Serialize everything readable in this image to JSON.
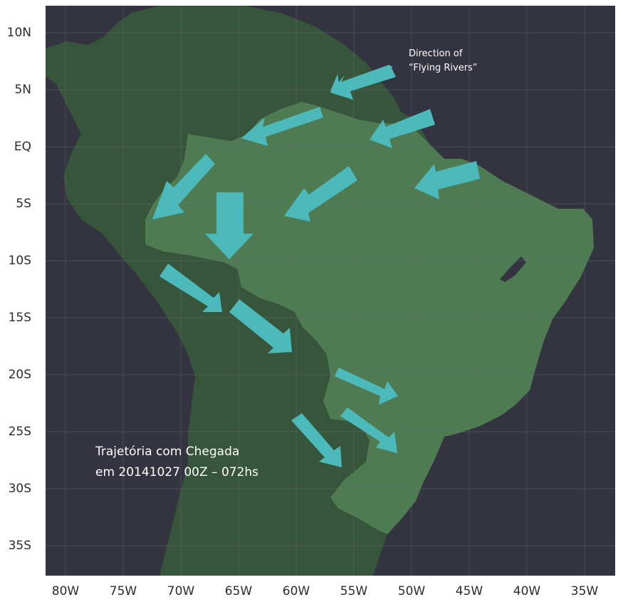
{
  "map": {
    "annotation_direction": [
      "Direction of",
      "“Flying Rivers”"
    ],
    "annotation_trajectory": [
      "Trajetória com Chegada",
      "em 20141027 00Z – 072hs"
    ],
    "lat_labels": [
      "10N",
      "5N",
      "EQ",
      "5S",
      "10S",
      "15S",
      "20S",
      "25S",
      "30S",
      "35S"
    ],
    "lon_labels": [
      "80W",
      "75W",
      "70W",
      "65W",
      "60W",
      "55W",
      "50W",
      "45W",
      "40W",
      "35W"
    ],
    "colors": {
      "ocean": "#33343f",
      "land": "#37553a",
      "brazil": "#4e7b52",
      "arrow": "#4cb9ba",
      "grid": "#6b6e76",
      "label_text": "#2c2c2c",
      "annotation_text": "#ffffff"
    }
  }
}
